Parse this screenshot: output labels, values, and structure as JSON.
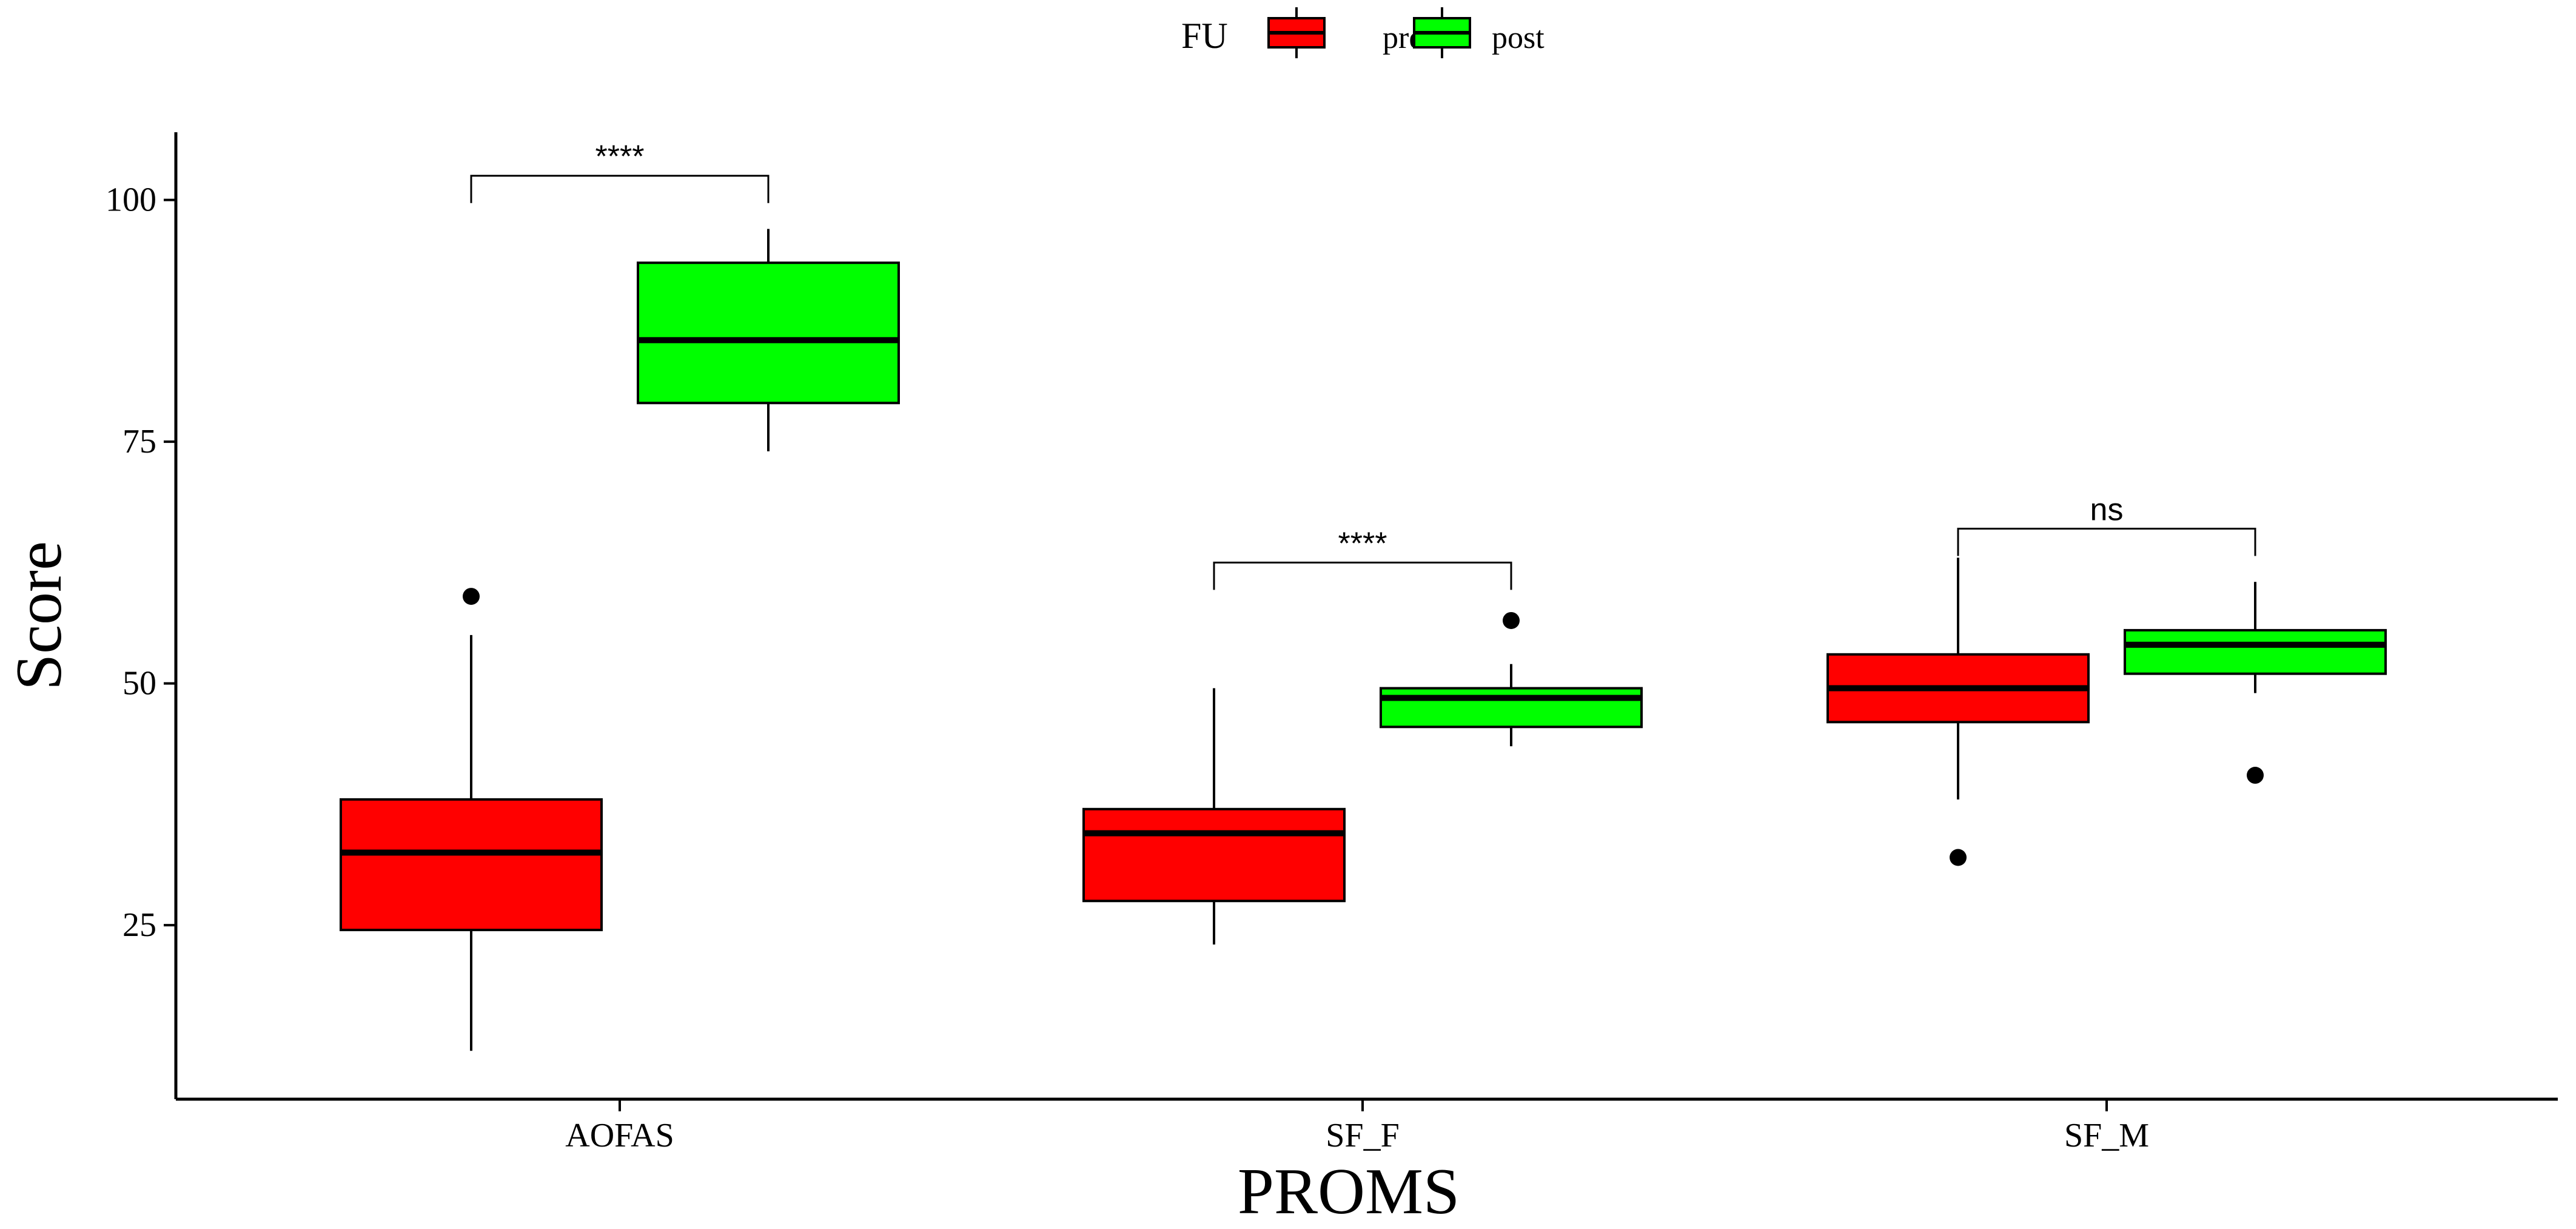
{
  "chart_data": {
    "type": "boxplot",
    "xlabel": "PROMS",
    "ylabel": "Score",
    "categories": [
      "AOFAS",
      "SF_F",
      "SF_M"
    ],
    "y_ticks": [
      25,
      50,
      75,
      100
    ],
    "ylim": [
      7,
      107
    ],
    "grid": false,
    "legend": {
      "title": "FU",
      "position": "top",
      "entries": [
        {
          "name": "pre",
          "color": "#ff0000"
        },
        {
          "name": "post",
          "color": "#00ff00"
        }
      ]
    },
    "series": [
      {
        "name": "pre",
        "color": "#ff0000",
        "boxes": [
          {
            "category": "AOFAS",
            "whisker_low": 12,
            "q1": 24.5,
            "median": 32.5,
            "q3": 38,
            "whisker_high": 55,
            "outliers": [
              59
            ]
          },
          {
            "category": "SF_F",
            "whisker_low": 23,
            "q1": 27.5,
            "median": 34.5,
            "q3": 37,
            "whisker_high": 49.5,
            "outliers": []
          },
          {
            "category": "SF_M",
            "whisker_low": 38,
            "q1": 46,
            "median": 49.5,
            "q3": 53,
            "whisker_high": 63,
            "outliers": [
              32
            ]
          }
        ]
      },
      {
        "name": "post",
        "color": "#00ff00",
        "boxes": [
          {
            "category": "AOFAS",
            "whisker_low": 74,
            "q1": 79,
            "median": 85.5,
            "q3": 93.5,
            "whisker_high": 97,
            "outliers": []
          },
          {
            "category": "SF_F",
            "whisker_low": 43.5,
            "q1": 45.5,
            "median": 48.5,
            "q3": 49.5,
            "whisker_high": 52,
            "outliers": [
              56.5
            ]
          },
          {
            "category": "SF_M",
            "whisker_low": 49,
            "q1": 51,
            "median": 54,
            "q3": 55.5,
            "whisker_high": 60.5,
            "outliers": [
              40.5
            ]
          }
        ]
      }
    ],
    "annotations": [
      {
        "category": "AOFAS",
        "label": "****",
        "y": 102.5
      },
      {
        "category": "SF_F",
        "label": "****",
        "y": 62.5
      },
      {
        "category": "SF_M",
        "label": "ns",
        "y": 66
      }
    ]
  }
}
